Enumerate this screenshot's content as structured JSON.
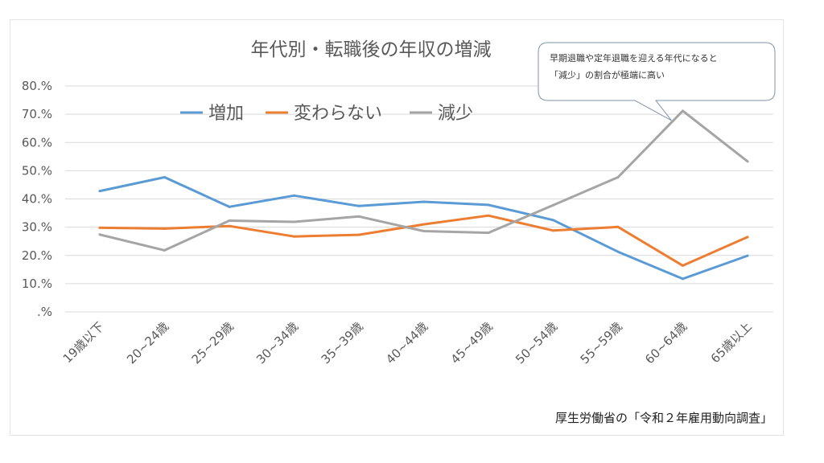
{
  "chart_data": {
    "type": "line",
    "title": "年代別・転職後の年収の増減",
    "categories": [
      "19歳以下",
      "20~24歳",
      "25~29歳",
      "30~34歳",
      "35~39歳",
      "40~44歳",
      "45~49歳",
      "50~54歳",
      "55~59歳",
      "60~64歳",
      "65歳以上"
    ],
    "series": [
      {
        "name": "増加",
        "color": "#5b9bd5",
        "values": [
          42.8,
          47.7,
          37.2,
          41.2,
          37.5,
          39.0,
          37.9,
          32.5,
          21.3,
          11.7,
          19.9
        ]
      },
      {
        "name": "変わらない",
        "color": "#ed7d31",
        "values": [
          29.8,
          29.5,
          30.4,
          26.7,
          27.3,
          31.0,
          34.1,
          28.8,
          30.1,
          16.4,
          26.5
        ]
      },
      {
        "name": "減少",
        "color": "#a5a5a5",
        "values": [
          27.4,
          21.8,
          32.3,
          31.9,
          33.8,
          28.6,
          28.0,
          37.8,
          47.7,
          71.2,
          53.3
        ]
      }
    ],
    "y_ticks": [
      "80.%",
      "70.%",
      "60.%",
      "50.%",
      "40.%",
      "30.%",
      "20.%",
      "10.%",
      ".%"
    ],
    "ylim": [
      0,
      80
    ],
    "grid": true,
    "legend_position": "top",
    "annotation": {
      "lines": [
        "早期退職や定年退職を迎える年代になると",
        "「減少」の割合が極端に高い"
      ],
      "target_series": "減少",
      "target_category": "60~64歳"
    },
    "source": "厚生労働省の「令和２年雇用動向調査」"
  }
}
